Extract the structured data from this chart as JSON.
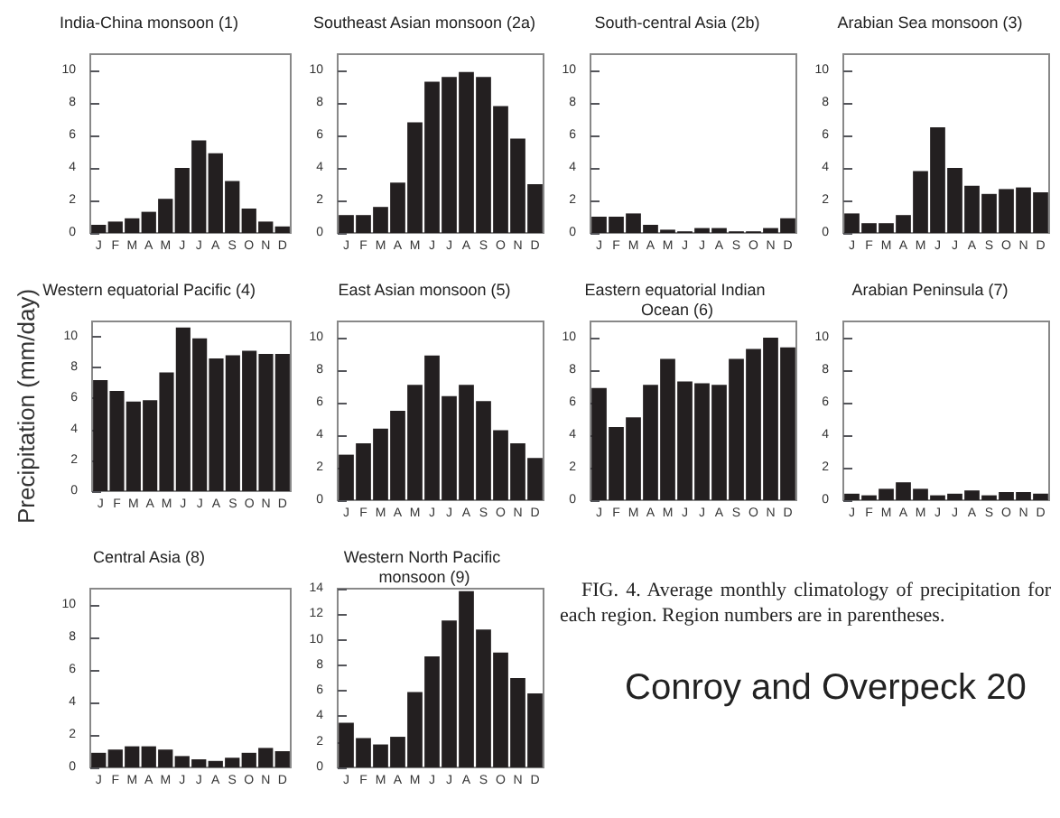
{
  "chart_data": [
    {
      "type": "bar",
      "title": "India-China monsoon (1)",
      "categories": [
        "J",
        "F",
        "M",
        "A",
        "M",
        "J",
        "J",
        "A",
        "S",
        "O",
        "N",
        "D"
      ],
      "values": [
        0.5,
        0.7,
        0.9,
        1.3,
        2.1,
        4.0,
        5.7,
        4.9,
        3.2,
        1.5,
        0.7,
        0.4
      ],
      "color": "#231f20",
      "ylim": [
        0,
        11
      ],
      "yticks": [
        0,
        2,
        4,
        6,
        8,
        10
      ]
    },
    {
      "type": "bar",
      "title": "Southeast Asian monsoon (2a)",
      "categories": [
        "J",
        "F",
        "M",
        "A",
        "M",
        "J",
        "J",
        "A",
        "S",
        "O",
        "N",
        "D"
      ],
      "values": [
        1.1,
        1.1,
        1.6,
        3.1,
        6.8,
        9.3,
        9.6,
        9.9,
        9.6,
        7.8,
        5.8,
        3.0
      ],
      "color": "#231f20",
      "ylim": [
        0,
        11
      ],
      "yticks": [
        0,
        2,
        4,
        6,
        8,
        10
      ]
    },
    {
      "type": "bar",
      "title": "South-central Asia (2b)",
      "categories": [
        "J",
        "F",
        "M",
        "A",
        "M",
        "J",
        "J",
        "A",
        "S",
        "O",
        "N",
        "D"
      ],
      "values": [
        1.0,
        1.0,
        1.2,
        0.5,
        0.2,
        0.1,
        0.3,
        0.3,
        0.1,
        0.1,
        0.3,
        0.9
      ],
      "color": "#231f20",
      "ylim": [
        0,
        11
      ],
      "yticks": [
        0,
        2,
        4,
        6,
        8,
        10
      ]
    },
    {
      "type": "bar",
      "title": "Arabian Sea monsoon (3)",
      "categories": [
        "J",
        "F",
        "M",
        "A",
        "M",
        "J",
        "J",
        "A",
        "S",
        "O",
        "N",
        "D"
      ],
      "values": [
        1.2,
        0.6,
        0.6,
        1.1,
        3.8,
        6.5,
        4.0,
        2.9,
        2.4,
        2.7,
        2.8,
        2.5
      ],
      "color": "#231f20",
      "ylim": [
        0,
        11
      ],
      "yticks": [
        0,
        2,
        4,
        6,
        8,
        10
      ]
    },
    {
      "type": "bar",
      "title": "Western equatorial Pacific (4)",
      "ylabel": "Precipitation (mm/day)",
      "categories": [
        "J",
        "F",
        "M",
        "A",
        "M",
        "J",
        "J",
        "A",
        "S",
        "O",
        "N",
        "D"
      ],
      "values": [
        7.2,
        6.5,
        5.8,
        5.9,
        7.7,
        10.6,
        9.9,
        8.6,
        8.8,
        9.1,
        8.9,
        8.9
      ],
      "color": "#231f20",
      "ylim": [
        0,
        11
      ],
      "yticks": [
        0,
        2,
        4,
        6,
        8,
        10
      ]
    },
    {
      "type": "bar",
      "title": "East Asian monsoon (5)",
      "categories": [
        "J",
        "F",
        "M",
        "A",
        "M",
        "J",
        "J",
        "A",
        "S",
        "O",
        "N",
        "D"
      ],
      "values": [
        2.8,
        3.5,
        4.4,
        5.5,
        7.1,
        8.9,
        6.4,
        7.1,
        6.1,
        4.3,
        3.5,
        2.6
      ],
      "color": "#231f20",
      "ylim": [
        0,
        11
      ],
      "yticks": [
        0,
        2,
        4,
        6,
        8,
        10
      ]
    },
    {
      "type": "bar",
      "title": "Eastern equatorial Indian Ocean (6)",
      "categories": [
        "J",
        "F",
        "M",
        "A",
        "M",
        "J",
        "J",
        "A",
        "S",
        "O",
        "N",
        "D"
      ],
      "values": [
        6.9,
        4.5,
        5.1,
        7.1,
        8.7,
        7.3,
        7.2,
        7.1,
        8.7,
        9.3,
        10.0,
        9.4
      ],
      "color": "#231f20",
      "ylim": [
        0,
        11
      ],
      "yticks": [
        0,
        2,
        4,
        6,
        8,
        10
      ]
    },
    {
      "type": "bar",
      "title": "Arabian Peninsula (7)",
      "categories": [
        "J",
        "F",
        "M",
        "A",
        "M",
        "J",
        "J",
        "A",
        "S",
        "O",
        "N",
        "D"
      ],
      "values": [
        0.4,
        0.3,
        0.7,
        1.1,
        0.7,
        0.3,
        0.4,
        0.6,
        0.3,
        0.5,
        0.5,
        0.4
      ],
      "color": "#231f20",
      "ylim": [
        0,
        11
      ],
      "yticks": [
        0,
        2,
        4,
        6,
        8,
        10
      ]
    },
    {
      "type": "bar",
      "title": "Central Asia (8)",
      "categories": [
        "J",
        "F",
        "M",
        "A",
        "M",
        "J",
        "J",
        "A",
        "S",
        "O",
        "N",
        "D"
      ],
      "values": [
        0.9,
        1.1,
        1.3,
        1.3,
        1.1,
        0.7,
        0.5,
        0.4,
        0.6,
        0.9,
        1.2,
        1.0
      ],
      "color": "#231f20",
      "ylim": [
        0,
        11
      ],
      "yticks": [
        0,
        2,
        4,
        6,
        8,
        10
      ]
    },
    {
      "type": "bar",
      "title": "Western North Pacific monsoon (9)",
      "categories": [
        "J",
        "F",
        "M",
        "A",
        "M",
        "J",
        "J",
        "A",
        "S",
        "O",
        "N",
        "D"
      ],
      "values": [
        3.5,
        2.3,
        1.8,
        2.4,
        5.9,
        8.7,
        11.5,
        13.8,
        10.8,
        9.0,
        7.0,
        5.8
      ],
      "color": "#231f20",
      "ylim": [
        0,
        14
      ],
      "yticks": [
        0,
        2,
        4,
        6,
        8,
        10,
        12,
        14
      ]
    },
    {
      "type": "other",
      "annotations": [
        "FIG. 4. Average monthly climatology of precipitation for each region. Region numbers are in parentheses.",
        "Conroy and Overpeck 20"
      ]
    }
  ]
}
